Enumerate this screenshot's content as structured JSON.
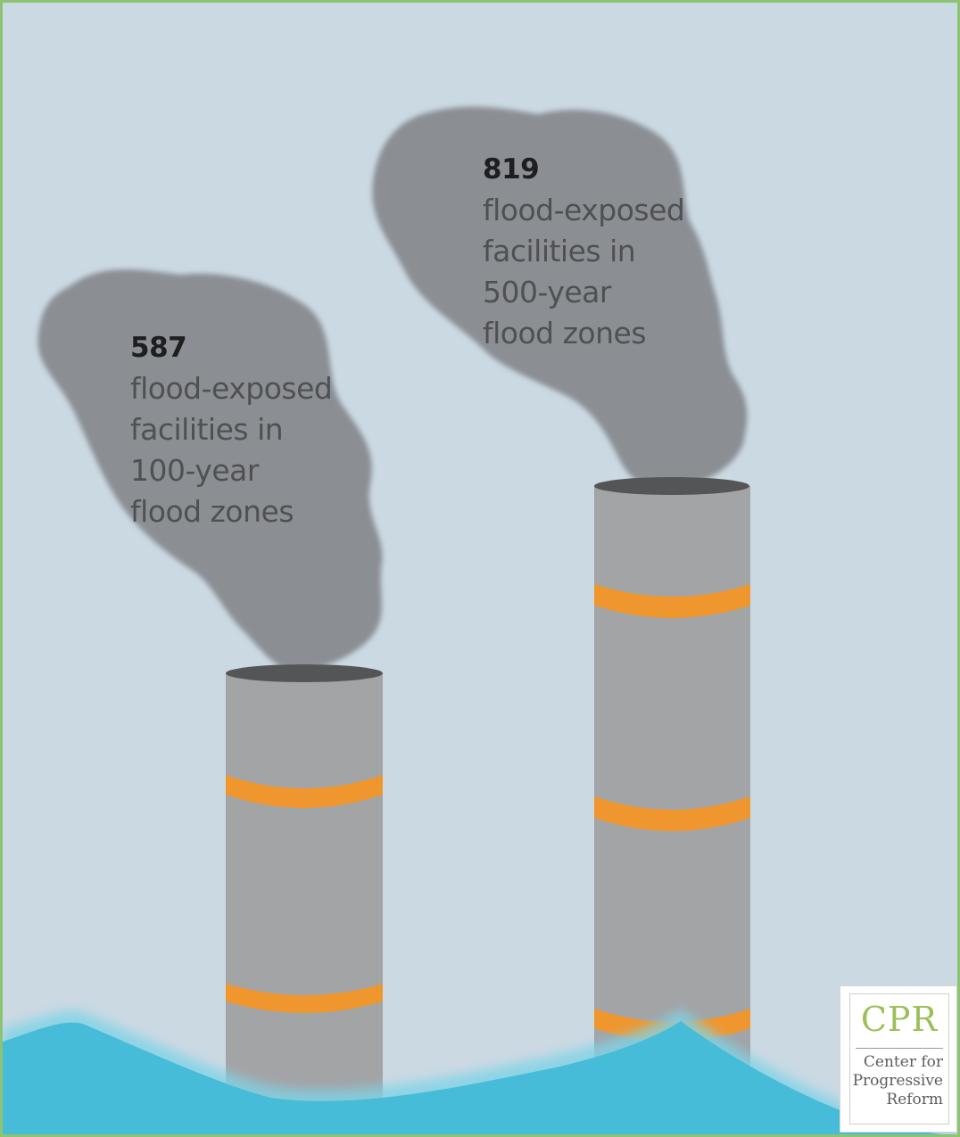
{
  "left_stack": {
    "number": "587",
    "lines": [
      "flood-exposed",
      "facilities in",
      "100-year",
      "flood zones"
    ]
  },
  "right_stack": {
    "number": "819",
    "lines": [
      "flood-exposed",
      "facilities in",
      "500-year",
      "flood zones"
    ]
  },
  "logo": {
    "acronym": "CPR",
    "name_lines": [
      "Center for",
      "Progressive",
      "Reform"
    ]
  },
  "colors": {
    "sky": "#cbd9e3",
    "smoke": "#8b8f94",
    "chimney": "#a3a4a6",
    "chimney_top": "#545557",
    "stripe": "#f0962e",
    "water": "#46bcd8",
    "border": "#8cc474",
    "logo_accent": "#9bbf59"
  }
}
